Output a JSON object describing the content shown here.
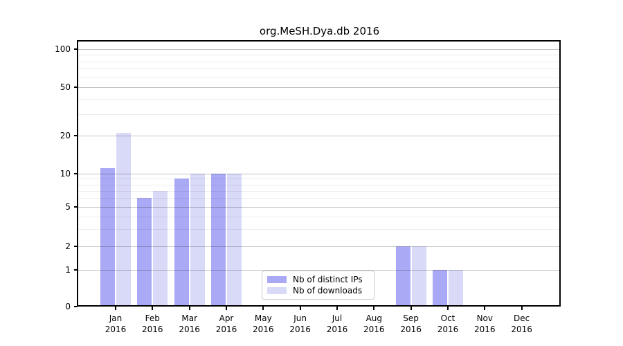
{
  "title": "org.MeSH.Dya.db 2016",
  "legend": {
    "items": [
      {
        "label": "Nb of distinct IPs",
        "color": "#a9a9f6"
      },
      {
        "label": "Nb of downloads",
        "color": "#d9d9f8"
      }
    ]
  },
  "chart_data": {
    "type": "bar",
    "title": "org.MeSH.Dya.db 2016",
    "categories": [
      {
        "month": "Jan",
        "year": "2016"
      },
      {
        "month": "Feb",
        "year": "2016"
      },
      {
        "month": "Mar",
        "year": "2016"
      },
      {
        "month": "Apr",
        "year": "2016"
      },
      {
        "month": "May",
        "year": "2016"
      },
      {
        "month": "Jun",
        "year": "2016"
      },
      {
        "month": "Jul",
        "year": "2016"
      },
      {
        "month": "Aug",
        "year": "2016"
      },
      {
        "month": "Sep",
        "year": "2016"
      },
      {
        "month": "Oct",
        "year": "2016"
      },
      {
        "month": "Nov",
        "year": "2016"
      },
      {
        "month": "Dec",
        "year": "2016"
      }
    ],
    "series": [
      {
        "name": "Nb of distinct IPs",
        "color": "#a9a9f6",
        "values": [
          11,
          6,
          9,
          10,
          0,
          0,
          0,
          0,
          2,
          1,
          0,
          0
        ]
      },
      {
        "name": "Nb of downloads",
        "color": "#d9d9f8",
        "values": [
          21,
          7,
          10,
          10,
          0,
          0,
          0,
          0,
          2,
          1,
          0,
          0
        ]
      }
    ],
    "yticks": [
      0,
      1,
      2,
      5,
      10,
      20,
      50,
      100
    ],
    "minor_gridline_values": [
      3,
      4,
      6,
      7,
      8,
      9,
      30,
      40,
      60,
      70,
      80,
      90
    ],
    "yscale": "log",
    "ylim": [
      0,
      110
    ],
    "xlabel": "",
    "ylabel": "",
    "grid": "horizontal major and minor gridlines",
    "legend_position": "lower center"
  }
}
